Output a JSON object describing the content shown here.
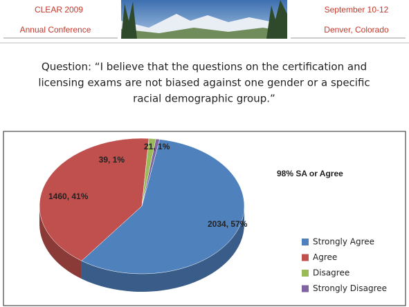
{
  "header": {
    "left": [
      "CLEAR 2009",
      "Annual Conference"
    ],
    "right": [
      "September 10-12",
      "Denver, Colorado"
    ]
  },
  "question": [
    "Question: “I believe that the questions on the certification and",
    "licensing exams are not biased against one gender or a specific",
    "racial demographic group.”"
  ],
  "chart_data": {
    "type": "pie",
    "categories": [
      "Strongly Agree",
      "Agree",
      "Disagree",
      "Strongly Disagree"
    ],
    "values": [
      2034,
      1460,
      39,
      21
    ],
    "value_labels": [
      "2034, 57%",
      "1460, 41%",
      "39, 1%",
      "21, 1%"
    ],
    "colors": [
      "#4f81bd",
      "#c0504d",
      "#9bbb59",
      "#8064a2"
    ],
    "annotation": "98% SA or Agree",
    "legend": "right"
  }
}
